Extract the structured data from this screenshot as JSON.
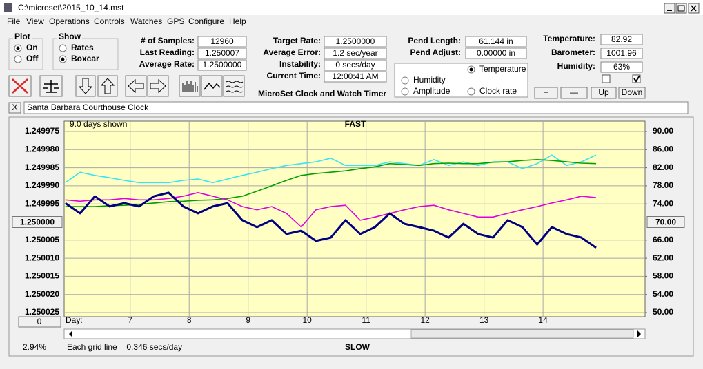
{
  "window": {
    "title": "C:\\microset\\2015_10_14.mst"
  },
  "menu": [
    "File",
    "View",
    "Operations",
    "Controls",
    "Watches",
    "GPS",
    "Configure",
    "Help"
  ],
  "plot_group": {
    "title": "Plot",
    "options": [
      "On",
      "Off"
    ]
  },
  "show_group": {
    "title": "Show",
    "options": [
      "Rates",
      "Boxcar"
    ]
  },
  "fields": [
    {
      "label": "# of Samples:",
      "value": "12960"
    },
    {
      "label": "Last Reading:",
      "value": "1.250007"
    },
    {
      "label": "Average Rate:",
      "value": "1.2500000"
    },
    {
      "label": "Target Rate:",
      "value": "1.2500000"
    },
    {
      "label": "Average Error:",
      "value": "1.2 sec/year"
    },
    {
      "label": "Instability:",
      "value": "0 secs/day"
    },
    {
      "label": "Current Time:",
      "value": "12:00:41 AM"
    },
    {
      "label": "Pend Length:",
      "value": "61.144 in"
    },
    {
      "label": "Pend Adjust:",
      "value": "0.00000 in"
    },
    {
      "label": "Temperature:",
      "value": "82.92"
    },
    {
      "label": "Barometer:",
      "value": "1001.96"
    },
    {
      "label": "Humidity:",
      "value": "63%"
    }
  ],
  "caption": "MicroSet Clock and Watch Timer",
  "rate_option": "Clock rate",
  "buttons": [
    "+",
    "—",
    "Up",
    "Down"
  ],
  "close_button": "X",
  "clock_name": "Santa Barbara Courthouse Clock",
  "status": {
    "offset": "0",
    "percent": "2.94%",
    "grid_note": "Each grid line = 0.346 secs/day"
  },
  "chart_data": {
    "type": "line",
    "top_label": "FAST",
    "bottom_label": "SLOW",
    "span_label": "9.0 days shown",
    "x_label": "Day:",
    "grid": true,
    "background": "#ffffc4",
    "xlim": [
      5.88,
      15.73
    ],
    "xticks": [
      7,
      8,
      9,
      10,
      11,
      12,
      13,
      14
    ],
    "ylim": [
      1.250025,
      1.249975
    ],
    "yticks": [
      {
        "value": 1.249975,
        "label": "1.249975"
      },
      {
        "value": 1.24998,
        "label": "1.249980"
      },
      {
        "value": 1.249985,
        "label": "1.249985"
      },
      {
        "value": 1.24999,
        "label": "1.249990"
      },
      {
        "value": 1.249995,
        "label": "1.249995"
      },
      {
        "value": 1.25,
        "label": "1.250000"
      },
      {
        "value": 1.250005,
        "label": "1.250005"
      },
      {
        "value": 1.25001,
        "label": "1.250010"
      },
      {
        "value": 1.250015,
        "label": "1.250015"
      },
      {
        "value": 1.25002,
        "label": "1.250020"
      },
      {
        "value": 1.250025,
        "label": "1.250025"
      }
    ],
    "y2lim": [
      50,
      90
    ],
    "y2ticks": [
      {
        "value": 90,
        "label": "90.00"
      },
      {
        "value": 86,
        "label": "86.00"
      },
      {
        "value": 82,
        "label": "82.00"
      },
      {
        "value": 78,
        "label": "78.00"
      },
      {
        "value": 74,
        "label": "74.00"
      },
      {
        "value": 70,
        "label": "70.00"
      },
      {
        "value": 66,
        "label": "66.00"
      },
      {
        "value": 62,
        "label": "62.00"
      },
      {
        "value": 58,
        "label": "58.00"
      },
      {
        "value": 54,
        "label": "54.00"
      },
      {
        "value": 50,
        "label": "50.00"
      }
    ],
    "x": [
      5.9,
      6.15,
      6.4,
      6.65,
      6.9,
      7.15,
      7.4,
      7.65,
      7.9,
      8.15,
      8.4,
      8.65,
      8.9,
      9.15,
      9.4,
      9.65,
      9.9,
      10.15,
      10.4,
      10.65,
      10.9,
      11.15,
      11.4,
      11.65,
      11.9,
      12.15,
      12.4,
      12.65,
      12.9,
      13.15,
      13.4,
      13.65,
      13.9,
      14.15,
      14.4,
      14.65,
      14.9
    ],
    "series": [
      {
        "name": "Amplitude",
        "color": "#38e4f4",
        "axis": "y2",
        "values": [
          78.7,
          81.0,
          80.3,
          79.8,
          79.2,
          78.7,
          78.7,
          78.7,
          79.2,
          79.5,
          78.7,
          79.5,
          80.3,
          81.0,
          81.8,
          82.5,
          82.9,
          83.3,
          84.1,
          82.5,
          82.5,
          82.5,
          83.3,
          82.9,
          82.5,
          83.8,
          82.5,
          83.3,
          82.5,
          83.3,
          83.3,
          81.8,
          82.9,
          84.8,
          82.5,
          83.3,
          84.8
        ]
      },
      {
        "name": "Temperature",
        "color": "#00a000",
        "axis": "y2",
        "values": [
          73.4,
          73.4,
          73.4,
          73.6,
          73.7,
          73.9,
          74.2,
          74.5,
          74.6,
          74.8,
          74.9,
          75.2,
          75.7,
          76.8,
          78.0,
          79.2,
          80.3,
          80.7,
          81.0,
          81.3,
          81.8,
          82.2,
          82.9,
          82.7,
          82.5,
          82.9,
          83.0,
          82.9,
          82.9,
          83.2,
          83.3,
          83.6,
          83.8,
          83.6,
          83.3,
          83.0,
          82.9
        ]
      },
      {
        "name": "Humidity",
        "color": "#e000e0",
        "axis": "y2",
        "values": [
          74.9,
          74.6,
          74.9,
          74.9,
          75.2,
          74.9,
          74.9,
          75.2,
          75.7,
          76.5,
          75.7,
          74.9,
          73.4,
          72.7,
          73.4,
          71.9,
          68.9,
          72.7,
          73.4,
          73.7,
          70.4,
          71.1,
          71.9,
          72.7,
          73.4,
          73.7,
          72.7,
          71.9,
          71.1,
          71.1,
          71.9,
          72.7,
          73.4,
          74.2,
          74.9,
          75.7,
          75.4
        ]
      },
      {
        "color": "#000080",
        "values": [
          1.2499948,
          1.2499976,
          1.2499929,
          1.2499957,
          1.2499948,
          1.2499957,
          1.2499929,
          1.2499919,
          1.2499957,
          1.2499976,
          1.2499957,
          1.2499948,
          1.2499995,
          1.2500014,
          1.2499995,
          1.2500033,
          1.2500024,
          1.2500052,
          1.2500043,
          1.2499995,
          1.2500033,
          1.2500014,
          1.2499976,
          1.2500005,
          1.2500014,
          1.2500024,
          1.2500043,
          1.2500005,
          1.2500033,
          1.2500043,
          1.2499995,
          1.2500014,
          1.2500062,
          1.2500014,
          1.2500033,
          1.2500043,
          1.2500071
        ]
      }
    ]
  }
}
